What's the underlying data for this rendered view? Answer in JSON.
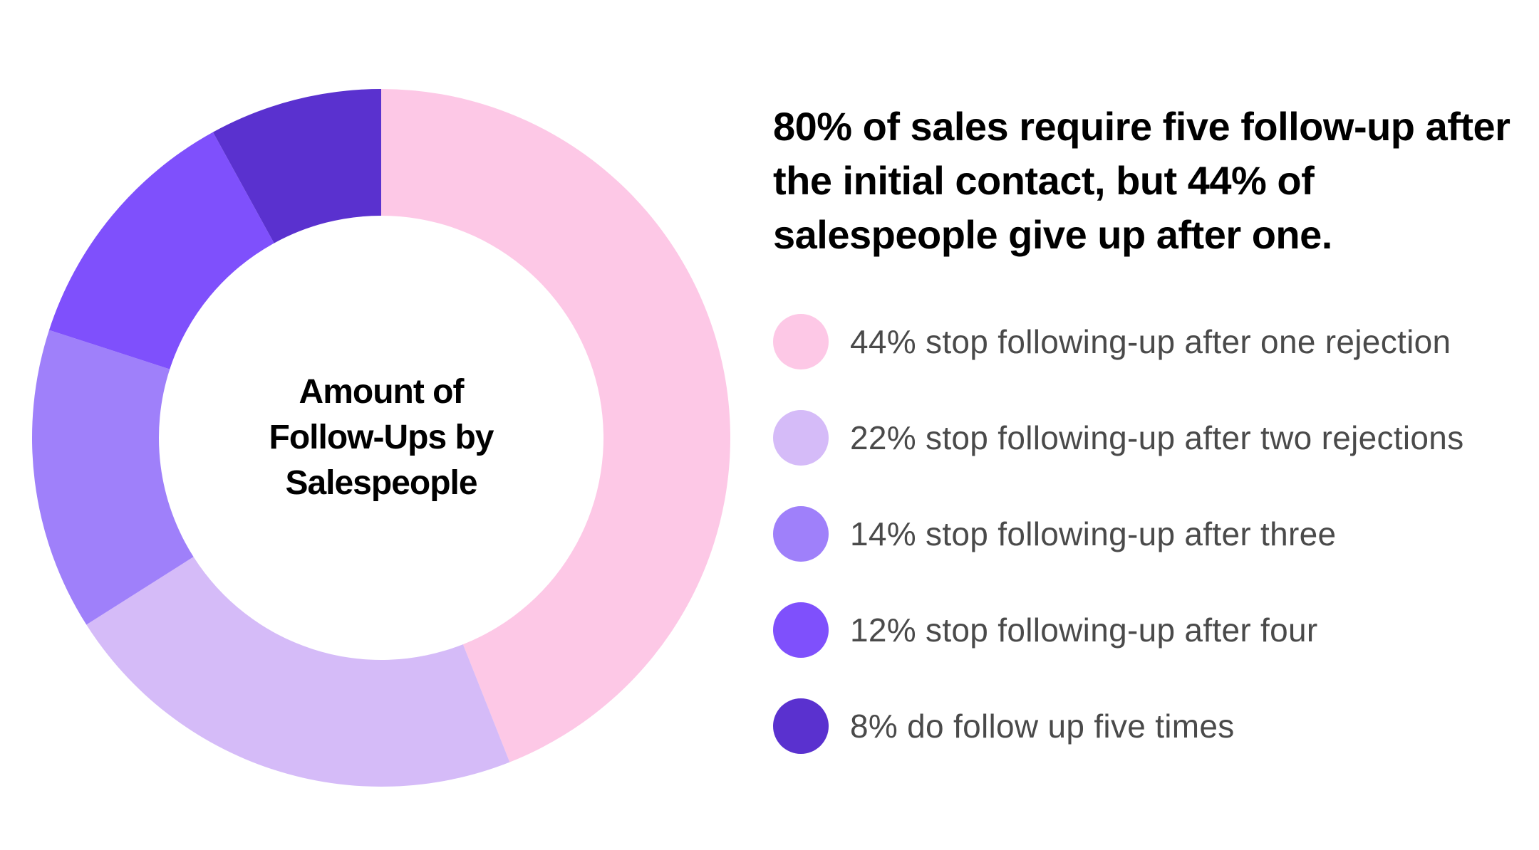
{
  "headline": "80% of sales require five follow-up after the initial contact, but 44% of salespeople give up after one.",
  "chart_data": {
    "type": "pie",
    "variant": "donut",
    "title": "Amount of Follow-Ups by Salespeople",
    "slices": [
      {
        "value": 44,
        "label": "44% stop following-up after one rejection",
        "color": "#FDC8E6"
      },
      {
        "value": 22,
        "label": "22% stop following-up after two rejections",
        "color": "#D5BBF8"
      },
      {
        "value": 14,
        "label": "14% stop following-up after three",
        "color": "#9F80FA"
      },
      {
        "value": 12,
        "label": "12% stop following-up after four",
        "color": "#7F50FC"
      },
      {
        "value": 8,
        "label": "8% do follow up five times",
        "color": "#5A31CF"
      }
    ]
  }
}
